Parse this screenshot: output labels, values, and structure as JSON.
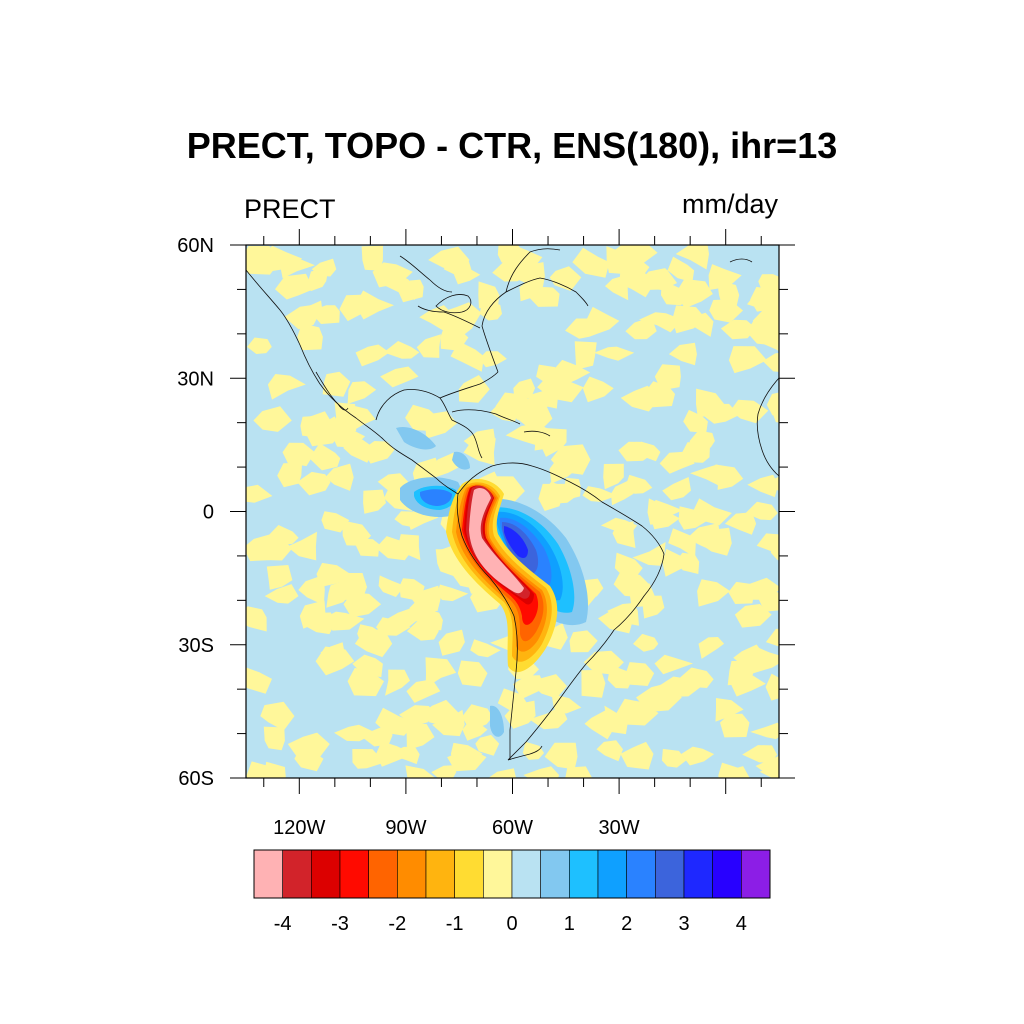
{
  "title": "PRECT, TOPO - CTR, ENS(180), ihr=13",
  "left_label": "PRECT",
  "right_label": "mm/day",
  "map": {
    "lon_range": [
      -135,
      15
    ],
    "lat_range": [
      -60,
      60
    ],
    "y_ticks": [
      "60N",
      "30N",
      "0",
      "30S",
      "60S"
    ],
    "y_tick_values": [
      60,
      30,
      0,
      -30,
      -60
    ],
    "x_ticks": [
      "120W",
      "90W",
      "60W",
      "30W"
    ],
    "x_tick_values": [
      -120,
      -90,
      -60,
      -30
    ],
    "background_fill": "#b9e2f2",
    "noise_fill": "#fff79a",
    "features": [
      {
        "name": "andes-negative-core",
        "level": -4,
        "color": "#ffb2b4"
      },
      {
        "name": "andes-strong-negative",
        "level": -3.5,
        "color": "#d2232a"
      },
      {
        "name": "amazon-positive-core",
        "level": 3.5,
        "color": "#1e28ff"
      },
      {
        "name": "pacific-positive-patch",
        "level": 2,
        "color": "#2a82ff"
      }
    ]
  },
  "colorbar": {
    "colors": [
      "#ffb2b4",
      "#d2232a",
      "#dc0000",
      "#ff0a00",
      "#ff6400",
      "#ff8c00",
      "#ffb40f",
      "#ffdc32",
      "#fff79a",
      "#b9e2f2",
      "#82c8f0",
      "#1ec0ff",
      "#0fa0ff",
      "#2a82ff",
      "#3c64dc",
      "#1e28ff",
      "#2800ff",
      "#8c1ee6"
    ],
    "labels": [
      "-4",
      "-3",
      "-2",
      "-1",
      "0",
      "1",
      "2",
      "3",
      "4"
    ],
    "label_values": [
      -4,
      -3,
      -2,
      -1,
      0,
      1,
      2,
      3,
      4
    ]
  }
}
